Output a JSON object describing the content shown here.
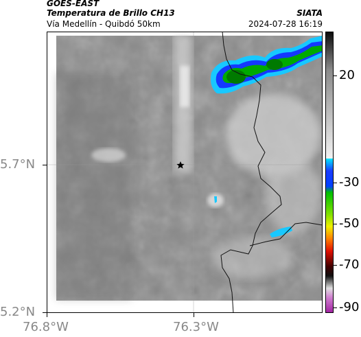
{
  "header": {
    "source": "GOES-EAST",
    "product": "Temperatura de Brillo CH13",
    "region": "Vía Medellín - Quibdó 50km",
    "org": "SIATA",
    "datetime": "2024-07-28 16:19"
  },
  "map": {
    "lat_labels": [
      "5.7°N",
      "5.2°N"
    ],
    "lon_labels": [
      "76.8°W",
      "76.3°W"
    ],
    "marker_icon": "star-icon"
  },
  "colorbar": {
    "ticks": [
      "20",
      "-30",
      "-50",
      "-70",
      "-90"
    ],
    "colors": {
      "top": "#111111",
      "cold_cyan": "#00d8ff",
      "blue": "#1a3cff",
      "green": "#00a000",
      "yellow": "#f0f000",
      "red": "#e01000",
      "magenta": "#c040c0"
    }
  }
}
